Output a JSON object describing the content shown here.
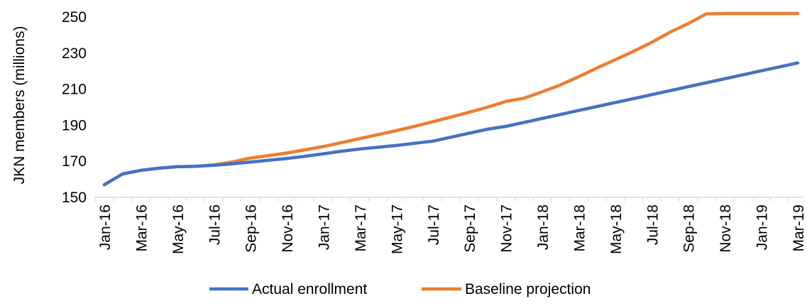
{
  "chart_data": {
    "type": "line",
    "title": "",
    "xlabel": "",
    "ylabel": "JKN members (millions)",
    "ylim": [
      150,
      252
    ],
    "yticks": [
      150,
      170,
      190,
      210,
      230,
      250
    ],
    "grid": false,
    "legend_position": "bottom",
    "categories": [
      "Jan-16",
      "Feb-16",
      "Mar-16",
      "Apr-16",
      "May-16",
      "Jun-16",
      "Jul-16",
      "Aug-16",
      "Sep-16",
      "Oct-16",
      "Nov-16",
      "Dec-16",
      "Jan-17",
      "Feb-17",
      "Mar-17",
      "Apr-17",
      "May-17",
      "Jun-17",
      "Jul-17",
      "Aug-17",
      "Sep-17",
      "Oct-17",
      "Nov-17",
      "Dec-17",
      "Jan-18",
      "Feb-18",
      "Mar-18",
      "Apr-18",
      "May-18",
      "Jun-18",
      "Jul-18",
      "Aug-18",
      "Sep-18",
      "Oct-18",
      "Nov-18",
      "Dec-18",
      "Jan-19",
      "Feb-19",
      "Mar-19"
    ],
    "xtick_labels": [
      "Jan-16",
      "Mar-16",
      "May-16",
      "Jul-16",
      "Sep-16",
      "Nov-16",
      "Jan-17",
      "Mar-17",
      "May-17",
      "Jul-17",
      "Sep-17",
      "Nov-17",
      "Jan-18",
      "Mar-18",
      "May-18",
      "Jul-18",
      "Sep-18",
      "Nov-18",
      "Jan-19",
      "Mar-19"
    ],
    "series": [
      {
        "name": "Actual enrollment",
        "color": "#4472C4",
        "values": [
          157.0,
          163.0,
          165.0,
          166.2,
          167.0,
          167.2,
          167.8,
          168.6,
          169.6,
          170.6,
          171.6,
          172.8,
          174.2,
          175.6,
          176.8,
          177.8,
          178.8,
          180.0,
          181.2,
          183.4,
          185.6,
          187.8,
          189.4,
          191.6,
          193.8,
          196.0,
          198.2,
          200.4,
          202.6,
          204.8,
          207.0,
          209.2,
          211.4,
          213.6,
          215.8,
          218.0,
          220.2,
          222.4,
          224.6
        ]
      },
      {
        "name": "Baseline projection",
        "color": "#ED7D31",
        "values": [
          157.0,
          163.0,
          165.0,
          166.2,
          167.0,
          167.2,
          168.0,
          169.6,
          171.8,
          173.2,
          174.6,
          176.4,
          178.2,
          180.4,
          182.6,
          184.8,
          187.0,
          189.4,
          192.0,
          194.6,
          197.2,
          200.0,
          203.2,
          205.0,
          208.6,
          212.4,
          217.0,
          221.8,
          226.4,
          231.0,
          236.0,
          241.6,
          246.4,
          251.8,
          259.2,
          259.0,
          259.4,
          258.6,
          259.2
        ]
      }
    ]
  }
}
